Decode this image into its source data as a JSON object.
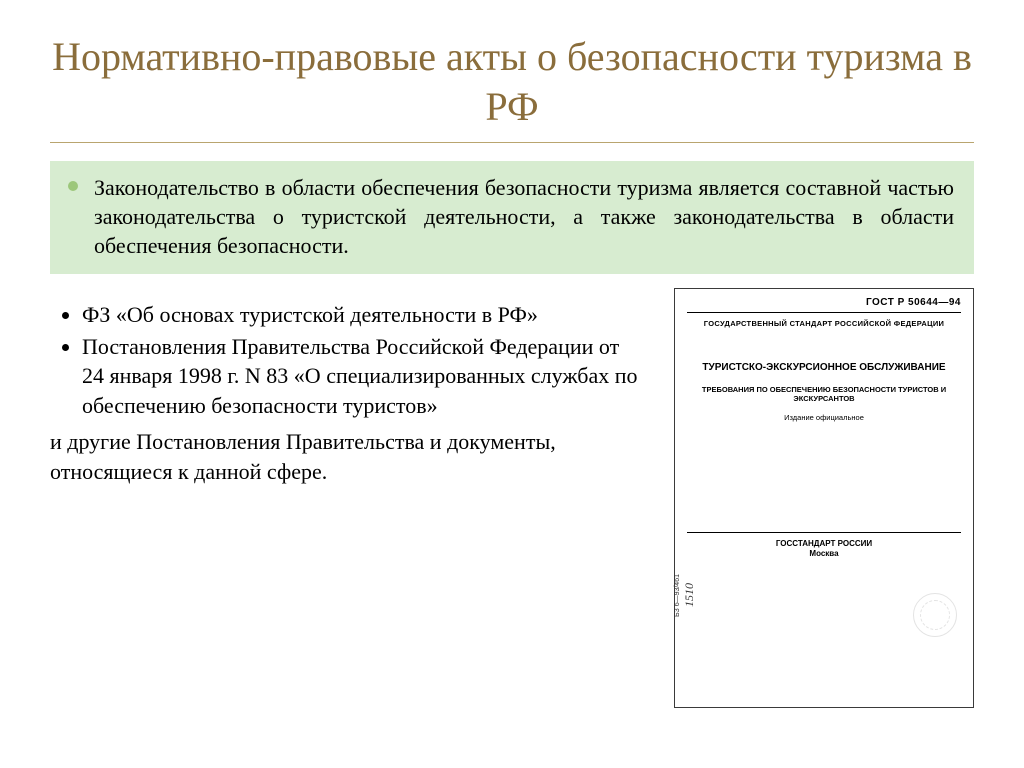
{
  "colors": {
    "title": "#8a6d3b",
    "title_underline": "#b9a56f",
    "green_box_bg": "#d7ecd0",
    "green_bullet": "#9cc77a",
    "page_bg": "#ffffff",
    "text": "#000000",
    "gost_border": "#3a3a3a"
  },
  "typography": {
    "title_fontsize": 40,
    "body_fontsize": 22,
    "title_font": "Georgia",
    "body_font": "Georgia"
  },
  "title": "Нормативно-правовые акты о безопасности туризма в РФ",
  "green_paragraph": "Законодательство в области обеспечения безопасности туризма является составной частью законодательства о туристской деятельности, а также законодательства в области обеспечения безопасности.",
  "bullets": [
    "ФЗ «Об основах туристской деятельности в РФ»",
    "Постановления Правительства Российской Федерации от 24 января 1998 г. N 83 «О специализированных службах по обеспечению безопасности туристов»"
  ],
  "tail": "и другие Постановления Правительства и документы, относящиеся к данной сфере.",
  "gost": {
    "number": "ГОСТ Р 50644—94",
    "subhead": "ГОСУДАРСТВЕННЫЙ СТАНДАРТ РОССИЙСКОЙ ФЕДЕРАЦИИ",
    "main": "ТУРИСТСКО-ЭКСКУРСИОННОЕ ОБСЛУЖИВАНИЕ",
    "req": "ТРЕБОВАНИЯ ПО ОБЕСПЕЧЕНИЮ БЕЗОПАСНОСТИ ТУРИСТОВ И ЭКСКУРСАНТОВ",
    "edition": "Издание официальное",
    "side_code": "БЗ 6—93/461",
    "side_num": "1510",
    "footer1": "ГОССТАНДАРТ РОССИИ",
    "footer2": "Москва"
  }
}
